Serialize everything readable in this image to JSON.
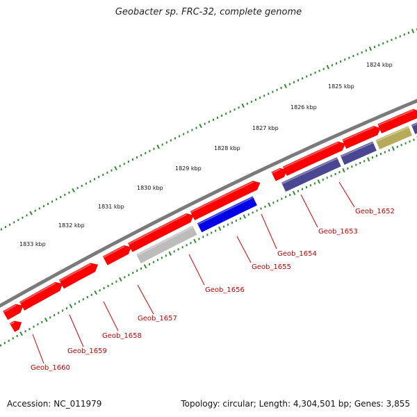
{
  "title": "Geobacter sp. FRC-32, complete genome",
  "footer": {
    "accession": "Accession: NC_011979",
    "summary": "Topology: circular; Length: 4,304,501 bp; Genes: 3,855"
  },
  "colors": {
    "backbone": "#7a7a7a",
    "tick_dots": "#2e8b2e",
    "label_line": "#d40000",
    "label_text": "#c00000",
    "cds_red": "#ff0000",
    "purple": "#4a4691",
    "blue": "#0000e6",
    "gray": "#bcbcbc",
    "olive": "#b5ab5a",
    "cyan": "#00e5e5"
  },
  "scale_labels": [
    "1824 kbp",
    "1825 kbp",
    "1826 kbp",
    "1827 kbp",
    "1828 kbp",
    "1829 kbp",
    "1830 kbp",
    "1831 kbp",
    "1832 kbp",
    "1833 kbp"
  ],
  "gene_labels": [
    "Geob_1652",
    "Geob_1653",
    "Geob_1654",
    "Geob_1655",
    "Geob_1656",
    "Geob_1657",
    "Geob_1658",
    "Geob_1659",
    "Geob_1660"
  ],
  "features": [
    {
      "track": "outer",
      "color": "cds_red",
      "t0": 0.0,
      "t1": 0.03,
      "dir": "fwd"
    },
    {
      "track": "outer",
      "color": "cds_red",
      "t0": 0.04,
      "t1": 0.125,
      "dir": "fwd"
    },
    {
      "track": "outer",
      "color": "cds_red",
      "t0": 0.135,
      "t1": 0.21,
      "dir": "fwd"
    },
    {
      "track": "outer",
      "color": "cds_red",
      "t0": 0.24,
      "t1": 0.29,
      "dir": "fwd"
    },
    {
      "track": "outer",
      "color": "cds_red",
      "t0": 0.3,
      "t1": 0.44,
      "dir": "fwd"
    },
    {
      "track": "outer",
      "color": "cds_red",
      "t0": 0.45,
      "t1": 0.6,
      "dir": "fwd"
    },
    {
      "track": "outer",
      "color": "cds_red",
      "t0": 0.645,
      "t1": 0.665,
      "dir": "fwd"
    },
    {
      "track": "outer",
      "color": "cds_red",
      "t0": 0.672,
      "t1": 0.805,
      "dir": "fwd"
    },
    {
      "track": "outer",
      "color": "cds_red",
      "t0": 0.815,
      "t1": 0.89,
      "dir": "fwd"
    },
    {
      "track": "outer",
      "color": "cds_red",
      "t0": 0.9,
      "t1": 0.985,
      "dir": "fwd"
    },
    {
      "track": "outer",
      "color": "cds_red",
      "t0": 0.995,
      "t1": 1.06,
      "dir": "fwd"
    },
    {
      "track": "outer",
      "color": "cds_red",
      "t0": 1.07,
      "t1": 1.12,
      "dir": "fwd"
    },
    {
      "track": "inner",
      "color": "cds_red",
      "t0": 0.0,
      "t1": 0.01,
      "dir": "fwd"
    },
    {
      "track": "inner",
      "color": "gray",
      "t0": 0.305,
      "t1": 0.44,
      "dir": "none"
    },
    {
      "track": "inner",
      "color": "blue",
      "t0": 0.452,
      "t1": 0.585,
      "dir": "none"
    },
    {
      "track": "inner",
      "color": "purple",
      "t0": 0.655,
      "t1": 0.788,
      "dir": "none"
    },
    {
      "track": "inner",
      "color": "purple",
      "t0": 0.797,
      "t1": 0.874,
      "dir": "none"
    },
    {
      "track": "inner",
      "color": "olive",
      "t0": 0.882,
      "t1": 0.96,
      "dir": "none"
    },
    {
      "track": "inner",
      "color": "purple",
      "t0": 0.968,
      "t1": 1.075,
      "dir": "none"
    },
    {
      "track": "inner",
      "color": "cyan",
      "t0": 1.13,
      "t1": 1.2,
      "dir": "none"
    }
  ]
}
